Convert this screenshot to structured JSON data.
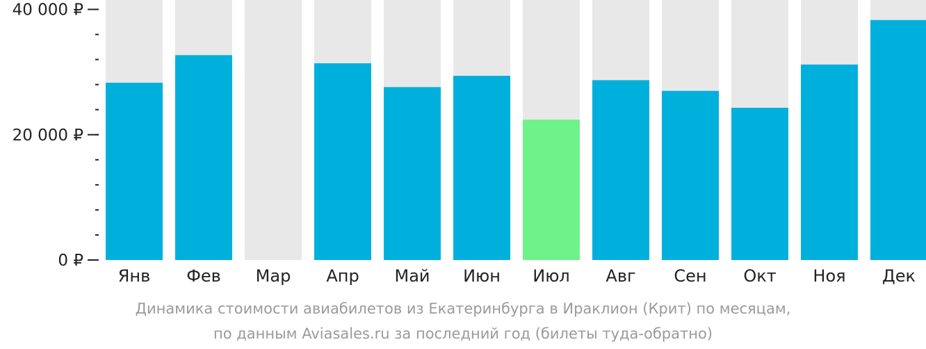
{
  "chart_data": {
    "type": "bar",
    "categories": [
      "Янв",
      "Фев",
      "Мар",
      "Апр",
      "Май",
      "Июн",
      "Июл",
      "Авг",
      "Сен",
      "Окт",
      "Ноя",
      "Дек"
    ],
    "values": [
      28300,
      32700,
      null,
      31400,
      27600,
      29400,
      22400,
      28700,
      27000,
      24300,
      31200,
      38300
    ],
    "ylim": [
      0,
      41500
    ],
    "yticks": [
      {
        "value": 0,
        "label": "0 ₽"
      },
      {
        "value": 20000,
        "label": "20 000 ₽"
      },
      {
        "value": 40000,
        "label": "40 000 ₽"
      }
    ],
    "minor_tick_step": 4000,
    "highlight_index": 6,
    "colors": {
      "bar": "#00b0dc",
      "highlight": "#6ef28a",
      "background_bar": "#e8e8e8",
      "axis": "#222222",
      "tick_label": "#222222"
    }
  },
  "caption": {
    "line1": "Динамика стоимости авиабилетов из Екатеринбурга в Ираклион (Крит) по месяцам,",
    "line2": "по данным Aviasales.ru за последний год (билеты туда-обратно)"
  }
}
